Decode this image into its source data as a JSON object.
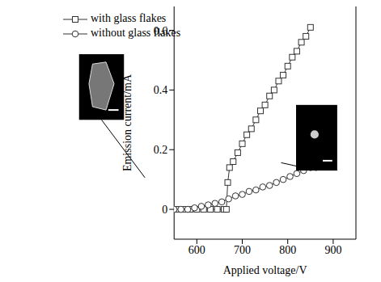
{
  "chart_data": {
    "type": "line",
    "xlabel": "Applied voltage/V",
    "ylabel": "Emission current/mA",
    "xlim": [
      550,
      950
    ],
    "xticks": [
      600,
      700,
      800,
      900
    ],
    "ylim": [
      -0.1,
      0.68
    ],
    "yticks": [
      0,
      0.2,
      0.4,
      0.6
    ],
    "legend": "upper left",
    "grid": false,
    "series": [
      {
        "name": "with glass flakes",
        "color": "#333333",
        "marker": "square",
        "line_style": "solid",
        "x": [
          555,
          570,
          585,
          600,
          615,
          630,
          645,
          660,
          665,
          668,
          672,
          680,
          690,
          700,
          710,
          720,
          730,
          740,
          750,
          760,
          770,
          780,
          790,
          800,
          810,
          820,
          830,
          840,
          850
        ],
        "values": [
          0,
          0,
          0,
          0,
          0,
          0,
          0,
          0,
          0,
          0.09,
          0.14,
          0.16,
          0.19,
          0.22,
          0.25,
          0.27,
          0.3,
          0.33,
          0.35,
          0.38,
          0.4,
          0.43,
          0.45,
          0.48,
          0.51,
          0.53,
          0.56,
          0.58,
          0.61
        ]
      },
      {
        "name": "without glass flakes",
        "color": "#333333",
        "marker": "circle",
        "line_style": "solid",
        "x": [
          550,
          565,
          580,
          595,
          610,
          625,
          640,
          655,
          670,
          685,
          700,
          715,
          730,
          745,
          760,
          775,
          790,
          805,
          820,
          835,
          850
        ],
        "values": [
          0,
          0,
          0,
          0.005,
          0.01,
          0.015,
          0.02,
          0.025,
          0.035,
          0.045,
          0.05,
          0.06,
          0.065,
          0.075,
          0.08,
          0.09,
          0.1,
          0.11,
          0.12,
          0.13,
          0.14
        ]
      }
    ]
  }
}
